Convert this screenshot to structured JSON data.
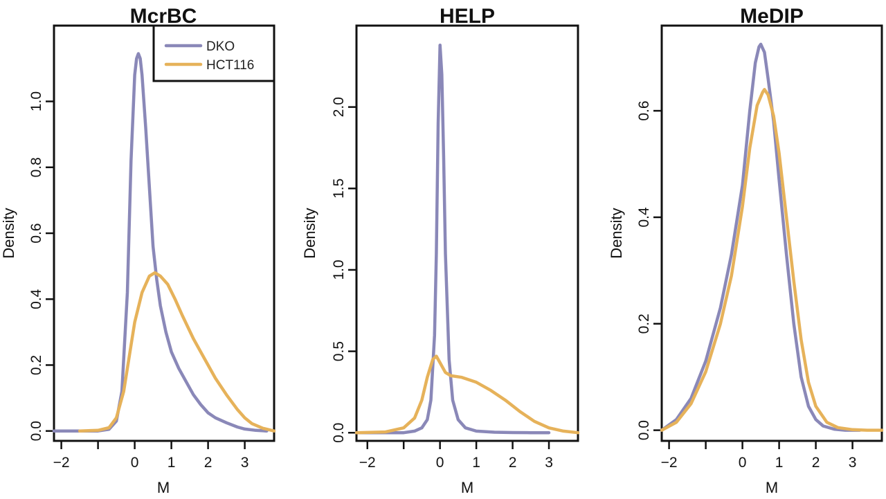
{
  "colors": {
    "dko": "#8a88b8",
    "hct116": "#e6b25a"
  },
  "chart_data": [
    {
      "type": "line",
      "title": "McrBC",
      "xlabel": "M",
      "ylabel": "Density",
      "xlim": [
        -2.2,
        3.8
      ],
      "ylim": [
        -0.03,
        1.23
      ],
      "xticks": [
        -2,
        -1,
        0,
        1,
        2,
        3
      ],
      "xtick_labels": [
        "−2",
        "",
        "0",
        "1",
        "2",
        "3"
      ],
      "yticks": [
        0.0,
        0.2,
        0.4,
        0.6,
        0.8,
        1.0
      ],
      "ytick_labels": [
        "0.0",
        "0.2",
        "0.4",
        "0.6",
        "0.8",
        "1.0"
      ],
      "legend": {
        "position": "top-right",
        "entries": [
          {
            "label": "DKO",
            "series": 0
          },
          {
            "label": "HCT116",
            "series": 1
          }
        ]
      },
      "series": [
        {
          "name": "DKO",
          "x": [
            -2.2,
            -1.0,
            -0.7,
            -0.5,
            -0.35,
            -0.2,
            -0.1,
            0.0,
            0.05,
            0.1,
            0.15,
            0.2,
            0.3,
            0.4,
            0.5,
            0.6,
            0.7,
            0.85,
            1.0,
            1.2,
            1.4,
            1.6,
            1.8,
            2.0,
            2.2,
            2.5,
            2.8,
            3.0,
            3.3,
            3.6
          ],
          "y": [
            0.0,
            0.0,
            0.005,
            0.03,
            0.12,
            0.42,
            0.82,
            1.08,
            1.13,
            1.145,
            1.13,
            1.08,
            0.92,
            0.74,
            0.56,
            0.46,
            0.38,
            0.3,
            0.24,
            0.19,
            0.15,
            0.11,
            0.08,
            0.055,
            0.04,
            0.025,
            0.012,
            0.006,
            0.002,
            0.0
          ]
        },
        {
          "name": "HCT116",
          "x": [
            -1.5,
            -1.0,
            -0.7,
            -0.5,
            -0.3,
            -0.1,
            0.0,
            0.2,
            0.4,
            0.55,
            0.7,
            0.9,
            1.1,
            1.3,
            1.6,
            1.9,
            2.2,
            2.5,
            2.8,
            3.0,
            3.2,
            3.5,
            3.8
          ],
          "y": [
            0.0,
            0.002,
            0.01,
            0.04,
            0.12,
            0.26,
            0.33,
            0.42,
            0.47,
            0.48,
            0.47,
            0.445,
            0.4,
            0.35,
            0.28,
            0.22,
            0.16,
            0.11,
            0.065,
            0.04,
            0.022,
            0.008,
            0.0
          ]
        }
      ]
    },
    {
      "type": "line",
      "title": "HELP",
      "xlabel": "M",
      "ylabel": "Density",
      "xlim": [
        -2.3,
        3.8
      ],
      "ylim": [
        -0.05,
        2.5
      ],
      "xticks": [
        -2,
        -1,
        0,
        1,
        2,
        3
      ],
      "xtick_labels": [
        "−2",
        "",
        "0",
        "1",
        "2",
        "3"
      ],
      "yticks": [
        0.0,
        0.5,
        1.0,
        1.5,
        2.0
      ],
      "ytick_labels": [
        "0.0",
        "0.5",
        "1.0",
        "1.5",
        "2.0"
      ],
      "series": [
        {
          "name": "DKO",
          "x": [
            -2.3,
            -1.0,
            -0.7,
            -0.5,
            -0.35,
            -0.25,
            -0.15,
            -0.1,
            -0.05,
            0.0,
            0.05,
            0.1,
            0.15,
            0.25,
            0.35,
            0.5,
            0.7,
            1.0,
            1.5,
            2.0,
            2.5,
            3.0
          ],
          "y": [
            0.0,
            0.0,
            0.01,
            0.03,
            0.08,
            0.2,
            0.6,
            1.1,
            1.9,
            2.38,
            2.2,
            1.7,
            1.1,
            0.45,
            0.2,
            0.08,
            0.03,
            0.01,
            0.003,
            0.001,
            0.0,
            0.0
          ]
        },
        {
          "name": "HCT116",
          "x": [
            -2.3,
            -1.5,
            -1.0,
            -0.7,
            -0.5,
            -0.35,
            -0.2,
            -0.1,
            0.0,
            0.15,
            0.3,
            0.6,
            1.0,
            1.4,
            1.8,
            2.2,
            2.6,
            3.0,
            3.4,
            3.8
          ],
          "y": [
            0.0,
            0.005,
            0.03,
            0.09,
            0.2,
            0.34,
            0.45,
            0.47,
            0.43,
            0.37,
            0.35,
            0.34,
            0.31,
            0.26,
            0.2,
            0.13,
            0.07,
            0.03,
            0.01,
            0.0
          ]
        }
      ]
    },
    {
      "type": "line",
      "title": "MeDIP",
      "xlabel": "M",
      "ylabel": "Density",
      "xlim": [
        -2.2,
        3.8
      ],
      "ylim": [
        -0.02,
        0.76
      ],
      "xticks": [
        -2,
        -1,
        0,
        1,
        2,
        3
      ],
      "xtick_labels": [
        "−2",
        "",
        "0",
        "1",
        "2",
        "3"
      ],
      "yticks": [
        0.0,
        0.2,
        0.4,
        0.6
      ],
      "ytick_labels": [
        "0.0",
        "0.2",
        "0.4",
        "0.6"
      ],
      "series": [
        {
          "name": "DKO",
          "x": [
            -2.2,
            -1.8,
            -1.4,
            -1.0,
            -0.6,
            -0.3,
            0.0,
            0.2,
            0.35,
            0.45,
            0.5,
            0.6,
            0.7,
            0.85,
            1.0,
            1.2,
            1.4,
            1.6,
            1.8,
            2.0,
            2.2,
            2.5,
            2.8,
            3.2
          ],
          "y": [
            0.0,
            0.02,
            0.06,
            0.13,
            0.23,
            0.33,
            0.46,
            0.6,
            0.69,
            0.72,
            0.725,
            0.71,
            0.66,
            0.58,
            0.47,
            0.33,
            0.2,
            0.1,
            0.045,
            0.02,
            0.008,
            0.002,
            0.0,
            0.0
          ]
        },
        {
          "name": "HCT116",
          "x": [
            -2.2,
            -1.8,
            -1.4,
            -1.0,
            -0.6,
            -0.3,
            0.0,
            0.2,
            0.4,
            0.55,
            0.6,
            0.7,
            0.85,
            1.0,
            1.2,
            1.4,
            1.6,
            1.8,
            2.0,
            2.3,
            2.6,
            3.0,
            3.4,
            3.8
          ],
          "y": [
            0.0,
            0.015,
            0.05,
            0.11,
            0.2,
            0.29,
            0.42,
            0.53,
            0.61,
            0.635,
            0.64,
            0.63,
            0.59,
            0.52,
            0.4,
            0.28,
            0.17,
            0.09,
            0.045,
            0.015,
            0.005,
            0.001,
            0.0,
            0.0
          ]
        }
      ]
    }
  ]
}
